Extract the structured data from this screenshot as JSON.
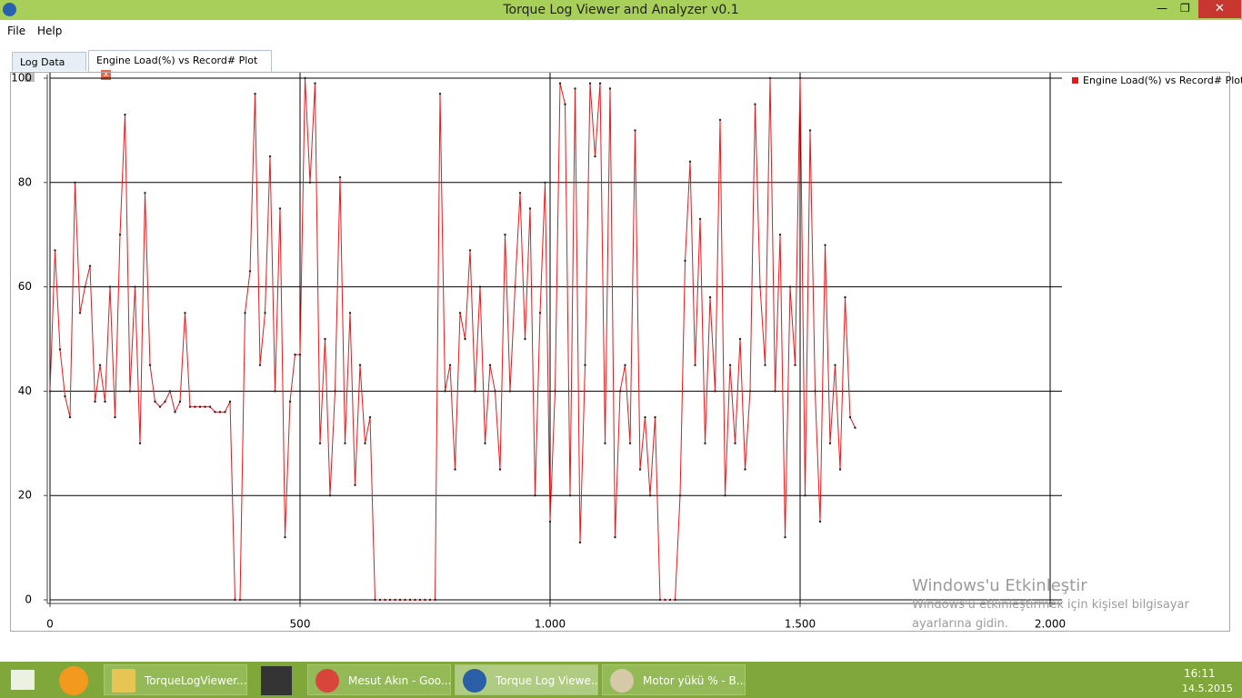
{
  "window": {
    "title": "Torque Log Viewer and Analyzer v0.1",
    "menu": [
      "File",
      "Help"
    ],
    "tabs": [
      "Log Data",
      "Engine Load(%) vs Record# Plot"
    ]
  },
  "chart_data": {
    "type": "line",
    "legend": "top-right",
    "grid": true,
    "series": [
      {
        "name": "Engine Load(%) vs Record# Plot",
        "color": "#e31a1c",
        "x": [
          0,
          10,
          20,
          30,
          40,
          50,
          60,
          70,
          80,
          90,
          100,
          110,
          120,
          130,
          140,
          150,
          160,
          170,
          180,
          190,
          200,
          210,
          220,
          230,
          240,
          250,
          260,
          270,
          280,
          290,
          300,
          310,
          320,
          330,
          340,
          350,
          360,
          370,
          380,
          390,
          400,
          410,
          420,
          430,
          440,
          450,
          460,
          470,
          480,
          490,
          500,
          510,
          520,
          530,
          540,
          550,
          560,
          570,
          580,
          590,
          600,
          610,
          620,
          630,
          640,
          650,
          660,
          670,
          680,
          690,
          700,
          710,
          720,
          730,
          740,
          750,
          760,
          770,
          780,
          790,
          800,
          810,
          820,
          830,
          840,
          850,
          860,
          870,
          880,
          890,
          900,
          910,
          920,
          930,
          940,
          950,
          960,
          970,
          980,
          990,
          1000,
          1010,
          1020,
          1030,
          1040,
          1050,
          1060,
          1070,
          1080,
          1090,
          1100,
          1110,
          1120,
          1130,
          1140,
          1150,
          1160,
          1170,
          1180,
          1190,
          1200,
          1210,
          1220,
          1230,
          1240,
          1250,
          1260,
          1270,
          1280,
          1290,
          1300,
          1310,
          1320,
          1330,
          1340,
          1350,
          1360,
          1370,
          1380,
          1390,
          1400,
          1410,
          1420,
          1430,
          1440,
          1450,
          1460,
          1470,
          1480,
          1490,
          1500,
          1510,
          1520,
          1530,
          1540,
          1550,
          1560,
          1570,
          1580,
          1590,
          1600,
          1610
        ],
        "values": [
          40,
          67,
          48,
          39,
          35,
          80,
          55,
          60,
          64,
          38,
          45,
          38,
          60,
          35,
          70,
          93,
          40,
          60,
          30,
          78,
          45,
          38,
          37,
          38,
          40,
          36,
          38,
          55,
          37,
          37,
          37,
          37,
          37,
          36,
          36,
          36,
          38,
          0,
          0,
          55,
          63,
          97,
          45,
          55,
          85,
          40,
          75,
          12,
          38,
          47,
          47,
          100,
          80,
          99,
          30,
          50,
          20,
          40,
          81,
          30,
          55,
          22,
          45,
          30,
          35,
          0,
          0,
          0,
          0,
          0,
          0,
          0,
          0,
          0,
          0,
          0,
          0,
          0,
          97,
          40,
          45,
          25,
          55,
          50,
          67,
          40,
          60,
          30,
          45,
          40,
          25,
          70,
          40,
          60,
          78,
          50,
          75,
          20,
          55,
          80,
          15,
          40,
          99,
          95,
          20,
          98,
          11,
          45,
          99,
          85,
          99,
          30,
          98,
          12,
          40,
          45,
          30,
          90,
          25,
          35,
          20,
          35,
          0,
          0,
          0,
          0,
          20,
          65,
          84,
          45,
          73,
          30,
          58,
          40,
          92,
          20,
          45,
          30,
          50,
          25,
          40,
          95,
          60,
          45,
          100,
          40,
          70,
          12,
          60,
          45,
          100,
          20,
          90,
          40,
          15,
          68,
          30,
          45,
          25,
          58,
          35,
          33
        ]
      }
    ],
    "xlim": [
      0,
      2000
    ],
    "ylim": [
      0,
      100
    ],
    "xticks": [
      0,
      500,
      {
        "value": 1000,
        "label": "1.000"
      },
      {
        "value": 1500,
        "label": "1.500"
      },
      {
        "value": 2000,
        "label": "2.000"
      }
    ],
    "yticks": [
      0,
      20,
      40,
      60,
      80,
      100
    ]
  },
  "watermark": {
    "title": "Windows'u Etkinleştir",
    "lines": [
      "Windows'u etkinleştirmek için kişisel bilgisayar",
      "ayarlarına gidin."
    ]
  },
  "taskbar": {
    "items": [
      "TorqueLogViewer...",
      "Mesut Akın - Goo...",
      "Torque Log Viewe...",
      "Motor yükü % - B..."
    ],
    "time": "16:11",
    "date": "14.5.2015"
  }
}
